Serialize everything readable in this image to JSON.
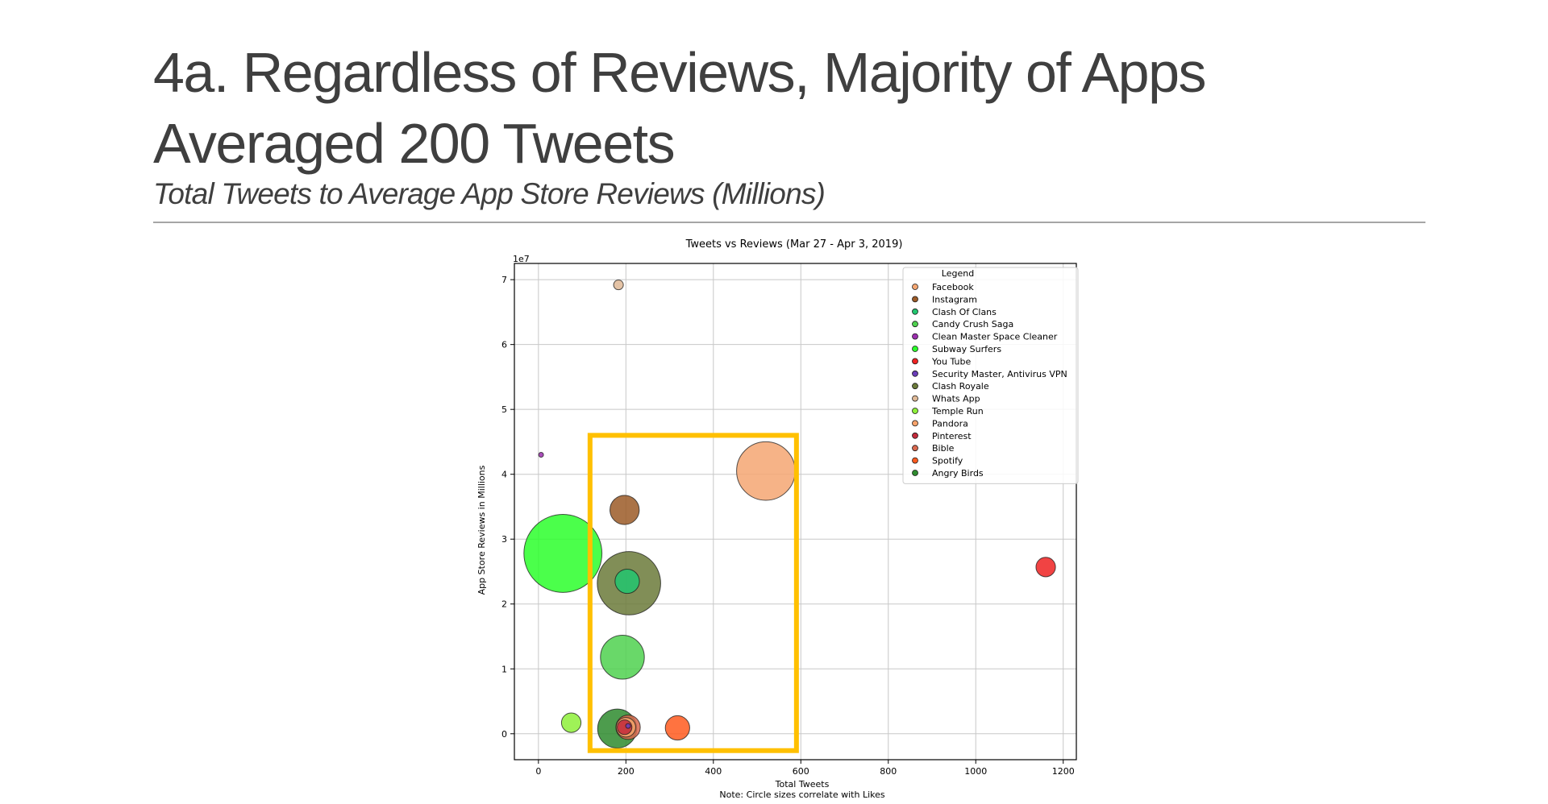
{
  "slide": {
    "title_line1": "4a. Regardless of Reviews, Majority of Apps",
    "title_line2": "Averaged 200 Tweets",
    "subtitle": "Total Tweets to Average App Store Reviews (Millions)"
  },
  "chart_data": {
    "type": "scatter",
    "title": "Tweets vs Reviews (Mar 27 - Apr 3, 2019)",
    "xlabel": "Total Tweets",
    "ylabel": "App Store Reviews in Millions",
    "note": "Note: Circle sizes correlate with Likes",
    "y_offset_label": "1e7",
    "xlim": [
      -55,
      1230
    ],
    "ylim": [
      -0.4,
      7.25
    ],
    "x_ticks": [
      0,
      200,
      400,
      600,
      800,
      1000,
      1200
    ],
    "y_ticks": [
      0,
      1,
      2,
      3,
      4,
      5,
      6,
      7
    ],
    "grid": true,
    "legend_title": "Legend",
    "legend_position": "upper right",
    "size_encoding": "Likes (relative)",
    "series": [
      {
        "name": "Facebook",
        "color": "#f4a672",
        "x": 520,
        "y": 4.05,
        "size": 12
      },
      {
        "name": "Instagram",
        "color": "#9b5a27",
        "x": 197,
        "y": 3.45,
        "size": 6
      },
      {
        "name": "Clash Of Clans",
        "color": "#22c66f",
        "x": 203,
        "y": 2.35,
        "size": 5
      },
      {
        "name": "Candy Crush Saga",
        "color": "#4fd14f",
        "x": 192,
        "y": 1.18,
        "size": 9
      },
      {
        "name": "Clean Master Space Cleaner",
        "color": "#9b2fae",
        "x": 6,
        "y": 4.3,
        "size": 1
      },
      {
        "name": "Subway Surfers",
        "color": "#2bff2b",
        "x": 56,
        "y": 2.78,
        "size": 16
      },
      {
        "name": "You Tube",
        "color": "#ee2222",
        "x": 1160,
        "y": 2.57,
        "size": 4
      },
      {
        "name": "Security Master, Antivirus VPN",
        "color": "#6a3db8",
        "x": 205,
        "y": 0.12,
        "size": 1
      },
      {
        "name": "Clash Royale",
        "color": "#6b7a3a",
        "x": 207,
        "y": 2.32,
        "size": 13
      },
      {
        "name": "Whats App",
        "color": "#dfb997",
        "x": 183,
        "y": 6.92,
        "size": 2
      },
      {
        "name": "Temple Run",
        "color": "#8ef03a",
        "x": 75,
        "y": 0.17,
        "size": 4
      },
      {
        "name": "Pandora",
        "color": "#f7a36b",
        "x": 200,
        "y": 0.1,
        "size": 4
      },
      {
        "name": "Pinterest",
        "color": "#c2293a",
        "x": 197,
        "y": 0.1,
        "size": 3
      },
      {
        "name": "Bible",
        "color": "#d9684e",
        "x": 205,
        "y": 0.1,
        "size": 5
      },
      {
        "name": "Spotify",
        "color": "#ff5a1f",
        "x": 318,
        "y": 0.09,
        "size": 5
      },
      {
        "name": "Angry Birds",
        "color": "#2e8b2e",
        "x": 180,
        "y": 0.08,
        "size": 8
      }
    ],
    "highlight_box": {
      "color": "#ffc000",
      "x_range": [
        118,
        590
      ],
      "y_range": [
        -0.26,
        4.6
      ]
    }
  }
}
